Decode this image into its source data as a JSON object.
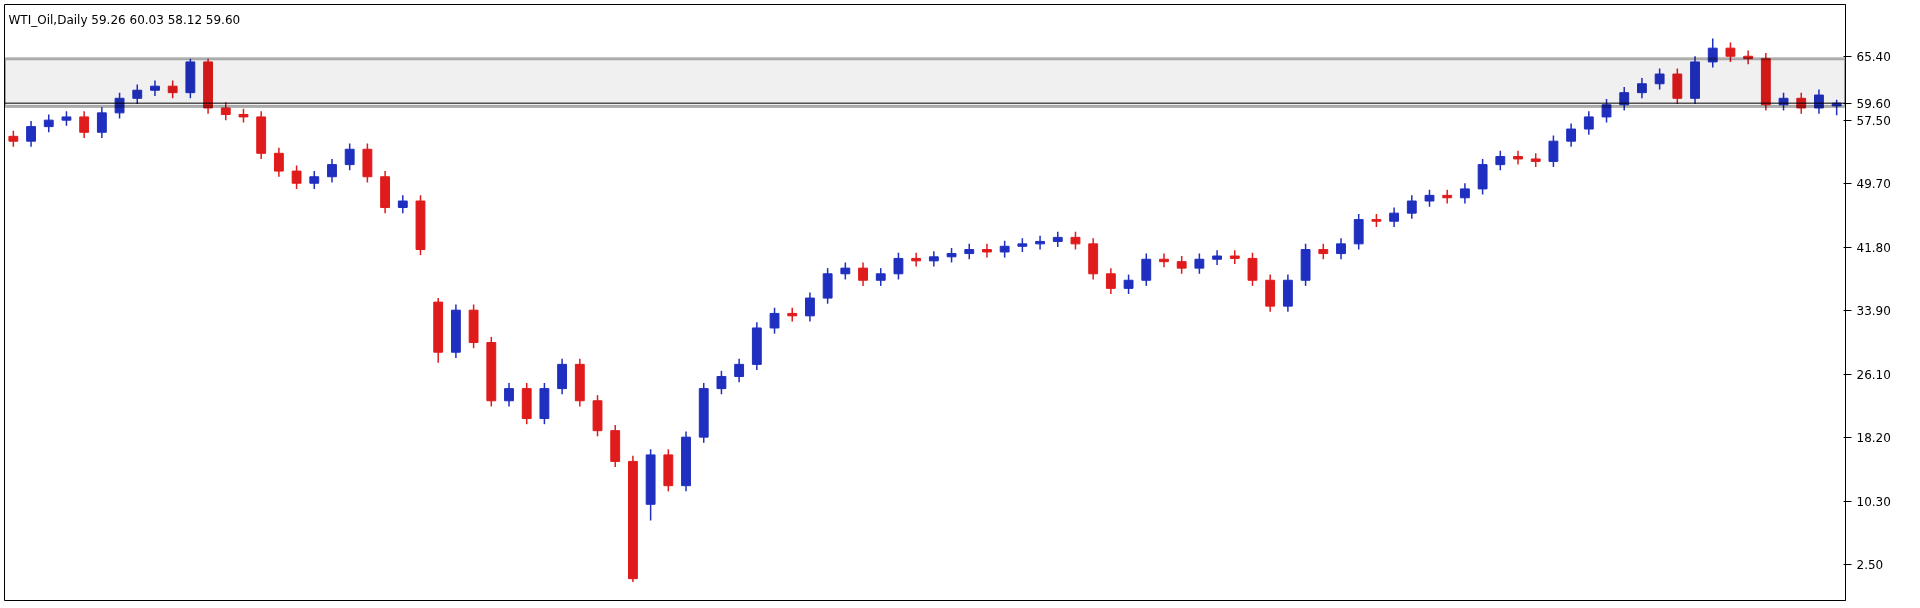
{
  "chart_data": {
    "type": "candlestick",
    "title": "WTI_Oil,Daily  59.26 60.03 58.12 59.60",
    "categories": [
      null,
      null,
      null,
      null,
      null,
      null,
      null,
      null,
      null,
      null,
      null,
      null,
      null,
      null,
      null,
      null,
      null,
      null,
      null,
      null,
      null,
      null,
      null,
      null,
      null,
      null,
      null,
      null,
      null,
      null,
      null,
      null,
      null,
      null,
      null,
      null,
      null,
      null,
      null,
      null,
      null,
      null,
      null,
      null,
      null,
      null,
      null,
      null,
      null,
      null,
      null,
      null,
      null,
      null,
      null,
      null,
      null,
      null,
      null,
      null,
      null,
      null,
      null,
      null,
      null,
      null,
      null,
      null,
      null,
      null,
      null,
      null,
      null,
      null,
      null,
      null,
      null,
      null,
      null,
      null,
      null,
      null,
      null,
      null,
      null,
      null,
      null,
      null,
      null,
      null,
      null,
      null,
      null,
      null,
      null,
      null,
      null,
      null,
      null,
      null,
      null,
      null,
      null,
      null
    ],
    "ohlc": [
      [
        55.5,
        56.2,
        54.2,
        54.9
      ],
      [
        54.9,
        57.4,
        54.2,
        56.7
      ],
      [
        56.7,
        58.2,
        56.0,
        57.5
      ],
      [
        57.5,
        58.6,
        56.8,
        57.9
      ],
      [
        57.9,
        58.6,
        55.3,
        56.0
      ],
      [
        56.0,
        59.1,
        55.3,
        58.4
      ],
      [
        58.4,
        60.9,
        57.7,
        60.2
      ],
      [
        60.2,
        61.9,
        59.5,
        61.2
      ],
      [
        61.2,
        62.4,
        60.5,
        61.7
      ],
      [
        61.7,
        62.4,
        60.2,
        60.9
      ],
      [
        60.9,
        65.1,
        60.2,
        64.7
      ],
      [
        64.7,
        65.1,
        58.3,
        59.0
      ],
      [
        59.0,
        59.7,
        57.5,
        58.2
      ],
      [
        58.2,
        58.9,
        57.2,
        57.9
      ],
      [
        57.9,
        58.6,
        52.7,
        53.4
      ],
      [
        53.4,
        54.1,
        50.5,
        51.2
      ],
      [
        51.2,
        51.9,
        49.0,
        49.7
      ],
      [
        49.7,
        51.2,
        49.0,
        50.5
      ],
      [
        50.5,
        52.7,
        49.8,
        52.0
      ],
      [
        52.0,
        54.6,
        51.3,
        53.9
      ],
      [
        53.9,
        54.6,
        49.8,
        50.5
      ],
      [
        50.5,
        51.2,
        46.0,
        46.7
      ],
      [
        46.7,
        48.2,
        46.0,
        47.5
      ],
      [
        47.5,
        48.2,
        40.8,
        41.5
      ],
      [
        35.0,
        35.5,
        27.5,
        28.8
      ],
      [
        28.8,
        34.7,
        28.1,
        34.0
      ],
      [
        34.0,
        34.7,
        29.3,
        30.0
      ],
      [
        30.0,
        30.7,
        22.1,
        22.8
      ],
      [
        22.8,
        25.0,
        22.1,
        24.3
      ],
      [
        24.3,
        25.0,
        19.9,
        20.6
      ],
      [
        20.6,
        25.0,
        19.9,
        24.3
      ],
      [
        24.3,
        28.0,
        23.6,
        27.3
      ],
      [
        27.3,
        28.0,
        22.1,
        22.8
      ],
      [
        22.8,
        23.5,
        18.4,
        19.1
      ],
      [
        19.1,
        19.8,
        14.6,
        15.3
      ],
      [
        15.3,
        16.0,
        0.4,
        0.8
      ],
      [
        10.0,
        16.8,
        8.0,
        16.1
      ],
      [
        16.1,
        16.8,
        11.6,
        12.3
      ],
      [
        12.3,
        19.0,
        11.6,
        18.3
      ],
      [
        18.3,
        25.0,
        17.6,
        24.3
      ],
      [
        24.3,
        26.5,
        23.6,
        25.8
      ],
      [
        25.8,
        28.0,
        25.1,
        27.3
      ],
      [
        27.3,
        32.5,
        26.6,
        31.8
      ],
      [
        31.8,
        34.3,
        31.1,
        33.6
      ],
      [
        33.6,
        34.3,
        32.6,
        33.3
      ],
      [
        33.3,
        36.2,
        32.6,
        35.5
      ],
      [
        35.5,
        39.2,
        34.8,
        38.5
      ],
      [
        38.5,
        39.9,
        37.8,
        39.2
      ],
      [
        39.2,
        39.9,
        37.0,
        37.7
      ],
      [
        37.7,
        39.2,
        37.0,
        38.5
      ],
      [
        38.5,
        41.1,
        37.8,
        40.4
      ],
      [
        40.4,
        41.1,
        39.4,
        40.1
      ],
      [
        40.1,
        41.3,
        39.4,
        40.6
      ],
      [
        40.6,
        41.7,
        39.9,
        41.0
      ],
      [
        41.0,
        42.2,
        40.3,
        41.5
      ],
      [
        41.5,
        42.2,
        40.5,
        41.2
      ],
      [
        41.2,
        42.6,
        40.5,
        41.9
      ],
      [
        41.9,
        42.9,
        41.2,
        42.2
      ],
      [
        42.2,
        43.2,
        41.5,
        42.5
      ],
      [
        42.5,
        43.7,
        41.8,
        43.0
      ],
      [
        43.0,
        43.7,
        41.5,
        42.2
      ],
      [
        42.2,
        42.9,
        37.8,
        38.5
      ],
      [
        38.5,
        39.2,
        36.0,
        36.7
      ],
      [
        36.7,
        38.4,
        36.0,
        37.7
      ],
      [
        37.7,
        41.0,
        37.0,
        40.3
      ],
      [
        40.3,
        41.0,
        39.3,
        40.0
      ],
      [
        40.0,
        40.7,
        38.5,
        39.2
      ],
      [
        39.2,
        41.0,
        38.5,
        40.3
      ],
      [
        40.3,
        41.4,
        39.6,
        40.7
      ],
      [
        40.7,
        41.4,
        39.7,
        40.4
      ],
      [
        40.4,
        41.1,
        37.0,
        37.7
      ],
      [
        37.7,
        38.4,
        33.8,
        34.5
      ],
      [
        34.5,
        38.4,
        33.8,
        37.7
      ],
      [
        37.7,
        42.2,
        37.0,
        41.5
      ],
      [
        41.5,
        42.2,
        40.3,
        41.0
      ],
      [
        41.0,
        42.9,
        40.3,
        42.2
      ],
      [
        42.2,
        45.9,
        41.5,
        45.2
      ],
      [
        45.2,
        45.9,
        44.3,
        45.0
      ],
      [
        45.0,
        46.7,
        44.3,
        46.0
      ],
      [
        46.0,
        48.2,
        45.3,
        47.5
      ],
      [
        47.5,
        48.9,
        46.8,
        48.2
      ],
      [
        48.2,
        48.9,
        47.2,
        47.9
      ],
      [
        47.9,
        49.7,
        47.2,
        49.0
      ],
      [
        49.0,
        52.7,
        48.3,
        52.0
      ],
      [
        52.0,
        53.7,
        51.3,
        53.0
      ],
      [
        53.0,
        53.7,
        52.0,
        52.7
      ],
      [
        52.7,
        53.4,
        51.7,
        52.4
      ],
      [
        52.4,
        55.6,
        51.7,
        54.9
      ],
      [
        54.9,
        57.1,
        54.2,
        56.4
      ],
      [
        56.4,
        58.6,
        55.7,
        57.9
      ],
      [
        57.9,
        60.1,
        57.2,
        59.4
      ],
      [
        59.4,
        61.6,
        58.7,
        60.9
      ],
      [
        60.9,
        62.7,
        60.2,
        62.0
      ],
      [
        62.0,
        63.9,
        61.3,
        63.2
      ],
      [
        63.2,
        63.9,
        59.5,
        60.2
      ],
      [
        60.2,
        65.4,
        59.5,
        64.7
      ],
      [
        64.7,
        67.6,
        64.0,
        66.4
      ],
      [
        66.4,
        67.1,
        64.7,
        65.4
      ],
      [
        65.4,
        66.1,
        64.4,
        65.1
      ],
      [
        65.1,
        65.8,
        58.7,
        59.4
      ],
      [
        59.4,
        60.9,
        58.7,
        60.2
      ],
      [
        60.2,
        60.9,
        58.3,
        59.0
      ],
      [
        59.0,
        61.3,
        58.3,
        60.6
      ],
      [
        59.26,
        60.03,
        58.12,
        59.6
      ]
    ],
    "colors": [
      "#e01b1b",
      "#1f2fbf",
      "#1f2fbf",
      "#1f2fbf",
      "#e01b1b",
      "#1f2fbf",
      "#1f2fbf",
      "#1f2fbf",
      "#1f2fbf",
      "#e01b1b",
      "#1f2fbf",
      "#e01b1b",
      "#e01b1b",
      "#e01b1b",
      "#e01b1b",
      "#e01b1b",
      "#e01b1b",
      "#1f2fbf",
      "#1f2fbf",
      "#1f2fbf",
      "#e01b1b",
      "#e01b1b",
      "#1f2fbf",
      "#e01b1b",
      "#e01b1b",
      "#1f2fbf",
      "#e01b1b",
      "#e01b1b",
      "#1f2fbf",
      "#e01b1b",
      "#1f2fbf",
      "#1f2fbf",
      "#e01b1b",
      "#e01b1b",
      "#e01b1b",
      "#e01b1b",
      "#1f2fbf",
      "#e01b1b",
      "#1f2fbf",
      "#1f2fbf",
      "#1f2fbf",
      "#1f2fbf",
      "#1f2fbf",
      "#1f2fbf",
      "#e01b1b",
      "#1f2fbf",
      "#1f2fbf",
      "#1f2fbf",
      "#e01b1b",
      "#1f2fbf",
      "#1f2fbf",
      "#e01b1b",
      "#1f2fbf",
      "#1f2fbf",
      "#1f2fbf",
      "#e01b1b",
      "#1f2fbf",
      "#1f2fbf",
      "#1f2fbf",
      "#1f2fbf",
      "#e01b1b",
      "#e01b1b",
      "#e01b1b",
      "#1f2fbf",
      "#1f2fbf",
      "#e01b1b",
      "#e01b1b",
      "#1f2fbf",
      "#1f2fbf",
      "#e01b1b",
      "#e01b1b",
      "#e01b1b",
      "#1f2fbf",
      "#1f2fbf",
      "#e01b1b",
      "#1f2fbf",
      "#1f2fbf",
      "#e01b1b",
      "#1f2fbf",
      "#1f2fbf",
      "#1f2fbf",
      "#e01b1b",
      "#1f2fbf",
      "#1f2fbf",
      "#1f2fbf",
      "#e01b1b",
      "#e01b1b",
      "#1f2fbf",
      "#1f2fbf",
      "#1f2fbf",
      "#1f2fbf",
      "#1f2fbf",
      "#1f2fbf",
      "#1f2fbf",
      "#e01b1b",
      "#1f2fbf",
      "#1f2fbf",
      "#e01b1b",
      "#e01b1b",
      "#e01b1b",
      "#1f2fbf",
      "#e01b1b",
      "#1f2fbf",
      "#1f2fbf"
    ],
    "ylim": [
      -1.9,
      71.8
    ],
    "yticks": [
      {
        "value": 2.5,
        "label": "2.50"
      },
      {
        "value": 10.3,
        "label": "10.30"
      },
      {
        "value": 18.2,
        "label": "18.20"
      },
      {
        "value": 26.1,
        "label": "26.10"
      },
      {
        "value": 33.9,
        "label": "33.90"
      },
      {
        "value": 41.8,
        "label": "41.80"
      },
      {
        "value": 49.7,
        "label": "49.70"
      },
      {
        "value": 57.5,
        "label": "57.50"
      },
      {
        "value": 65.4,
        "label": "65.40"
      }
    ],
    "tick_labels": "y",
    "ref_lines": [
      {
        "axis": "y",
        "value": 59.6,
        "label": "59.60",
        "color": "#000000"
      }
    ],
    "bands": [
      {
        "axis": "y",
        "from": 59.2,
        "to": 65.1,
        "color": "#000000"
      }
    ]
  }
}
